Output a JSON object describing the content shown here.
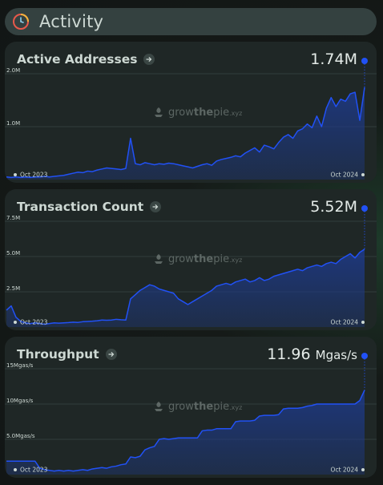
{
  "header": {
    "title": "Activity",
    "icon": "activity-clock-icon"
  },
  "watermark": {
    "prefix": "grow",
    "mid": "the",
    "suffix": "pie",
    "tld": ".xyz"
  },
  "colors": {
    "line": "#2151f5",
    "fill": "#1e3a8a",
    "card": "#1f2726",
    "grid": "#3a4644"
  },
  "chart_data": [
    {
      "type": "area",
      "title": "Active Addresses",
      "value_label": "1.74M",
      "unit": "",
      "y_ticks": [
        {
          "v": 2.0,
          "label": "2.0M"
        },
        {
          "v": 1.0,
          "label": "1.0M"
        }
      ],
      "ylim": [
        0,
        2.0
      ],
      "x_start_label": "Oct 2023",
      "x_end_label": "Oct 2024",
      "series": [
        {
          "values": [
            0.05,
            0.04,
            0.05,
            0.04,
            0.05,
            0.04,
            0.05,
            0.05,
            0.06,
            0.05,
            0.06,
            0.07,
            0.08,
            0.1,
            0.12,
            0.14,
            0.13,
            0.16,
            0.15,
            0.18,
            0.2,
            0.22,
            0.21,
            0.2,
            0.19,
            0.21,
            0.78,
            0.3,
            0.28,
            0.32,
            0.3,
            0.28,
            0.3,
            0.29,
            0.31,
            0.3,
            0.28,
            0.26,
            0.24,
            0.22,
            0.25,
            0.28,
            0.3,
            0.27,
            0.35,
            0.38,
            0.4,
            0.42,
            0.45,
            0.43,
            0.5,
            0.55,
            0.6,
            0.52,
            0.65,
            0.62,
            0.58,
            0.7,
            0.8,
            0.85,
            0.78,
            0.92,
            0.96,
            1.05,
            0.98,
            1.2,
            1.0,
            1.35,
            1.55,
            1.38,
            1.52,
            1.48,
            1.62,
            1.65,
            1.12,
            1.74
          ]
        }
      ]
    },
    {
      "type": "area",
      "title": "Transaction Count",
      "value_label": "5.52M",
      "unit": "",
      "y_ticks": [
        {
          "v": 7.5,
          "label": "7.5M"
        },
        {
          "v": 5.0,
          "label": "5.0M"
        },
        {
          "v": 2.5,
          "label": "2.5M"
        }
      ],
      "ylim": [
        0,
        7.5
      ],
      "x_start_label": "Oct 2023",
      "x_end_label": "Oct 2024",
      "series": [
        {
          "values": [
            1.2,
            1.5,
            0.7,
            0.4,
            0.3,
            0.25,
            0.3,
            0.25,
            0.2,
            0.25,
            0.3,
            0.28,
            0.3,
            0.32,
            0.35,
            0.33,
            0.38,
            0.4,
            0.42,
            0.45,
            0.5,
            0.48,
            0.5,
            0.55,
            0.52,
            0.5,
            2.0,
            2.3,
            2.6,
            2.8,
            3.0,
            2.9,
            2.7,
            2.6,
            2.5,
            2.4,
            2.0,
            1.8,
            1.6,
            1.8,
            2.0,
            2.2,
            2.4,
            2.6,
            2.9,
            3.0,
            3.1,
            3.0,
            3.2,
            3.3,
            3.4,
            3.2,
            3.3,
            3.5,
            3.3,
            3.4,
            3.6,
            3.7,
            3.8,
            3.9,
            4.0,
            4.1,
            4.0,
            4.2,
            4.3,
            4.4,
            4.3,
            4.5,
            4.6,
            4.5,
            4.8,
            5.0,
            5.2,
            4.9,
            5.3,
            5.52
          ]
        }
      ]
    },
    {
      "type": "area",
      "title": "Throughput",
      "value_label": "11.96",
      "unit": "Mgas/s",
      "y_ticks": [
        {
          "v": 15,
          "label": "15Mgas/s"
        },
        {
          "v": 10,
          "label": "10Mgas/s"
        },
        {
          "v": 5,
          "label": "5.0Mgas/s"
        }
      ],
      "ylim": [
        0,
        15
      ],
      "x_start_label": "Oct 2023",
      "x_end_label": "Oct 2024",
      "series": [
        {
          "values": [
            1.9,
            1.9,
            1.9,
            1.9,
            1.9,
            1.9,
            1.9,
            0.9,
            0.7,
            0.6,
            0.5,
            0.6,
            0.5,
            0.6,
            0.5,
            0.6,
            0.7,
            0.6,
            0.8,
            0.9,
            1.0,
            0.9,
            1.1,
            1.2,
            1.4,
            1.5,
            2.5,
            2.4,
            2.6,
            3.5,
            3.8,
            4.0,
            5.0,
            5.1,
            5.0,
            5.1,
            5.2,
            5.2,
            5.2,
            5.2,
            5.2,
            6.2,
            6.3,
            6.3,
            6.5,
            6.5,
            6.5,
            6.5,
            7.5,
            7.6,
            7.6,
            7.6,
            7.7,
            8.3,
            8.4,
            8.4,
            8.4,
            8.5,
            9.3,
            9.4,
            9.4,
            9.4,
            9.5,
            9.7,
            9.8,
            10.0,
            10.0,
            10.0,
            10.0,
            10.0,
            10.0,
            10.0,
            10.0,
            10.0,
            10.5,
            11.96
          ]
        }
      ]
    }
  ]
}
